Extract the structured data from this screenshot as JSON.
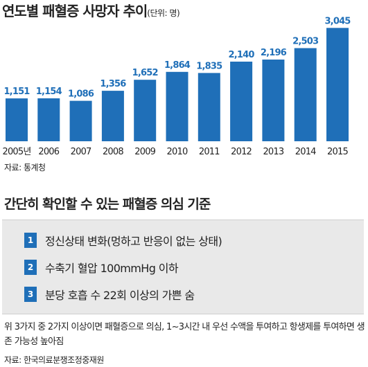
{
  "header": {
    "title": "연도별 패혈증 사망자 추이",
    "unit": "(단위: 명)"
  },
  "chart_data": {
    "type": "bar",
    "categories": [
      "2005년",
      "2006",
      "2007",
      "2008",
      "2009",
      "2010",
      "2011",
      "2012",
      "2013",
      "2014",
      "2015"
    ],
    "values": [
      1151,
      1154,
      1086,
      1356,
      1652,
      1864,
      1835,
      2140,
      2196,
      2503,
      3045
    ],
    "labels": [
      "1,151",
      "1,154",
      "1,086",
      "1,356",
      "1,652",
      "1,864",
      "1,835",
      "2,140",
      "2,196",
      "2,503",
      "3,045"
    ],
    "bar_color": "#1f6fb8",
    "ylim": [
      0,
      3200
    ],
    "grid": false,
    "legend": "none"
  },
  "chart_source": "자료: 통계청",
  "criteria": {
    "title": "간단히 확인할 수 있는 패혈증 의심 기준",
    "items": [
      {
        "num": "1",
        "text": "정신상태 변화(멍하고 반응이 없는 상태)"
      },
      {
        "num": "2",
        "text": "수축기 혈압 100mmHg 이하"
      },
      {
        "num": "3",
        "text": "분당 호흡 수 22회 이상의 가쁜 숨"
      }
    ]
  },
  "footnote": {
    "text": "위 3가지 중 2가지 이상이면 패혈증으로 의심, 1~3시간 내 우선 수액을 투여하고 항생제를 투여하면 생존 가능성 높아짐",
    "source": "자료: 한국의료분쟁조정중재원"
  },
  "colors": {
    "accent": "#1f6fb8",
    "panel": "#e9e9e9"
  }
}
